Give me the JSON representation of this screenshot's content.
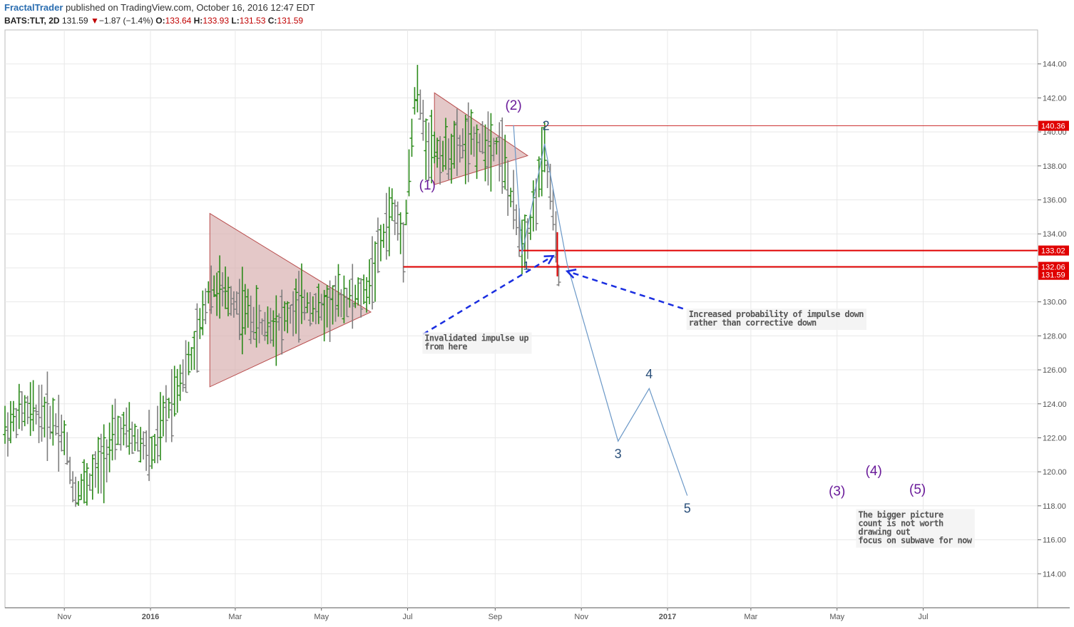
{
  "header": {
    "author": "FractalTrader",
    "published": "published on TradingView.com, October 16, 2016 12:47 EDT",
    "symbol": "BATS:TLT, 2D",
    "last": "131.59",
    "arrow": "▼",
    "change": "−1.87 (−1.4%)",
    "o_label": "O:",
    "o_value": "133.64",
    "h_label": "H:",
    "h_value": "133.93",
    "l_label": "L:",
    "l_value": "131.53",
    "c_label": "C:",
    "c_value": "131.59"
  },
  "chart_data": {
    "type": "ohlc-bar",
    "title": "",
    "xlabel": "",
    "ylabel": "",
    "ylim": [
      112.0,
      146.0
    ],
    "y_ticks": [
      "114.00",
      "116.00",
      "118.00",
      "120.00",
      "122.00",
      "124.00",
      "126.00",
      "128.00",
      "130.00",
      "132.00",
      "134.00",
      "136.00",
      "138.00",
      "140.00",
      "142.00",
      "144.00"
    ],
    "x_ticks": [
      {
        "label": "Nov",
        "date": "2015-11-01",
        "bold": false
      },
      {
        "label": "2016",
        "date": "2016-01-01",
        "bold": true
      },
      {
        "label": "Mar",
        "date": "2016-03-01",
        "bold": false
      },
      {
        "label": "May",
        "date": "2016-05-01",
        "bold": false
      },
      {
        "label": "Jul",
        "date": "2016-07-01",
        "bold": false
      },
      {
        "label": "Sep",
        "date": "2016-09-01",
        "bold": false
      },
      {
        "label": "Nov",
        "date": "2016-11-01",
        "bold": false
      },
      {
        "label": "2017",
        "date": "2017-01-01",
        "bold": true
      },
      {
        "label": "Mar",
        "date": "2017-03-01",
        "bold": false
      },
      {
        "label": "May",
        "date": "2017-05-01",
        "bold": false
      },
      {
        "label": "Jul",
        "date": "2017-07-01",
        "bold": false
      }
    ],
    "x_range": [
      "2015-09-20",
      "2017-09-20"
    ],
    "colors": {
      "up": "#2b8a1a",
      "down": "#7d7d7d",
      "level": "#e00000",
      "level_thin": "#cc3333",
      "triangle_fill": "#d9b0b0",
      "triangle_stroke": "#b84c4c",
      "wave": "#6b98c7",
      "arrow": "#1a2ee0",
      "purple": "#6a1b9a",
      "blue_label": "#2a4f7a",
      "grid": "#e8e8e8"
    },
    "price_levels": [
      {
        "price": 140.36,
        "label": "140.36",
        "from": "2016-09-08",
        "width": 1
      },
      {
        "price": 133.02,
        "label": "133.02",
        "from": "2016-09-18",
        "width": 2
      },
      {
        "price": 132.06,
        "label": "132.06",
        "from": "2016-06-28",
        "width": 2
      },
      {
        "price": 131.59,
        "label": "131.59",
        "from": null,
        "width": 0
      }
    ],
    "triangles": [
      {
        "points": [
          [
            "2016-02-12",
            135.2
          ],
          [
            "2016-06-05",
            129.4
          ],
          [
            "2016-02-12",
            125.0
          ]
        ]
      },
      {
        "points": [
          [
            "2016-07-20",
            142.3
          ],
          [
            "2016-09-24",
            138.6
          ],
          [
            "2016-07-20",
            136.9
          ]
        ]
      }
    ],
    "wave_path": [
      [
        "2016-09-14",
        140.4
      ],
      [
        "2016-09-20",
        132.8
      ],
      [
        "2016-10-06",
        139.3
      ],
      [
        "2016-10-22",
        132.2
      ],
      [
        "2016-11-27",
        121.8
      ],
      [
        "2016-12-19",
        124.9
      ],
      [
        "2017-01-15",
        118.6
      ]
    ],
    "wave_labels": [
      {
        "text": "(2)",
        "date": "2016-09-14",
        "price": 141.3,
        "color": "purple",
        "size": 19
      },
      {
        "text": "(1)",
        "date": "2016-07-15",
        "price": 136.6,
        "color": "purple",
        "size": 19
      },
      {
        "text": "2",
        "date": "2016-10-07",
        "price": 140.1,
        "color": "blue_label",
        "size": 18
      },
      {
        "text": "1",
        "date": "2016-09-23",
        "price": 131.9,
        "color": "blue_label",
        "size": 17
      },
      {
        "text": "3",
        "date": "2016-11-27",
        "price": 120.8,
        "color": "blue_label",
        "size": 18
      },
      {
        "text": "4",
        "date": "2016-12-19",
        "price": 125.5,
        "color": "blue_label",
        "size": 18
      },
      {
        "text": "5",
        "date": "2017-01-15",
        "price": 117.6,
        "color": "blue_label",
        "size": 18
      },
      {
        "text": "(3)",
        "date": "2017-05-01",
        "price": 118.6,
        "color": "purple",
        "size": 19
      },
      {
        "text": "(4)",
        "date": "2017-05-27",
        "price": 119.8,
        "color": "purple",
        "size": 19
      },
      {
        "text": "(5)",
        "date": "2017-06-27",
        "price": 118.7,
        "color": "purple",
        "size": 19
      }
    ],
    "dashed_arrows": [
      {
        "from": [
          "2016-07-12",
          128.1
        ],
        "to": [
          "2016-10-12",
          132.7
        ]
      },
      {
        "from": [
          "2017-01-12",
          129.6
        ],
        "to": [
          "2016-10-22",
          131.8
        ]
      }
    ],
    "annotations": [
      {
        "lines": [
          "Invalidated impulse up",
          "from here"
        ],
        "date": "2016-07-13",
        "price": 127.7
      },
      {
        "lines": [
          "Increased probability of impulse down",
          "rather than corrective down"
        ],
        "date": "2017-01-16",
        "price": 129.1
      },
      {
        "lines": [
          "The bigger picture",
          "count is not worth",
          "drawing out",
          "focus on subwave for now"
        ],
        "date": "2017-05-16",
        "price": 117.3
      }
    ],
    "bars_seed": 7,
    "bars_keyframes": [
      [
        "2015-09-20",
        122.5
      ],
      [
        "2015-10-01",
        123.5
      ],
      [
        "2015-10-15",
        123.5
      ],
      [
        "2015-10-27",
        122.8
      ],
      [
        "2015-11-01",
        122.0
      ],
      [
        "2015-11-08",
        118.8
      ],
      [
        "2015-11-20",
        119.5
      ],
      [
        "2015-12-10",
        122.5
      ],
      [
        "2015-12-20",
        122.0
      ],
      [
        "2016-01-03",
        121.0
      ],
      [
        "2016-01-10",
        123.0
      ],
      [
        "2016-01-22",
        125.5
      ],
      [
        "2016-02-01",
        127.0
      ],
      [
        "2016-02-12",
        131.0
      ],
      [
        "2016-03-01",
        130.0
      ],
      [
        "2016-03-20",
        128.5
      ],
      [
        "2016-04-05",
        129.0
      ],
      [
        "2016-04-20",
        130.0
      ],
      [
        "2016-05-01",
        129.5
      ],
      [
        "2016-05-15",
        130.2
      ],
      [
        "2016-06-01",
        130.4
      ],
      [
        "2016-06-10",
        132.8
      ],
      [
        "2016-06-20",
        135.5
      ],
      [
        "2016-06-28",
        133.6
      ],
      [
        "2016-07-02",
        137.5
      ],
      [
        "2016-07-07",
        142.8
      ],
      [
        "2016-07-14",
        139.5
      ],
      [
        "2016-07-25",
        138.6
      ],
      [
        "2016-08-15",
        139.4
      ],
      [
        "2016-09-05",
        139.2
      ],
      [
        "2016-09-12",
        136.0
      ],
      [
        "2016-09-20",
        133.6
      ],
      [
        "2016-09-26",
        134.5
      ],
      [
        "2016-10-06",
        138.8
      ],
      [
        "2016-10-12",
        135.2
      ],
      [
        "2016-10-16",
        131.6
      ]
    ]
  }
}
